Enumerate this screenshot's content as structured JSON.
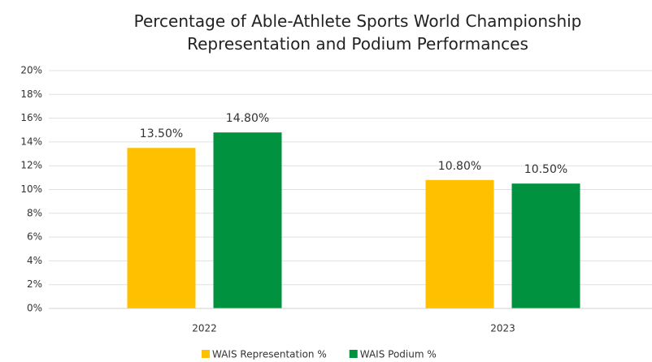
{
  "chart_data": {
    "type": "bar",
    "title": "Percentage of Able-Athlete Sports World Championship Representation and Podium Performances",
    "categories": [
      "2022",
      "2023"
    ],
    "series": [
      {
        "name": "WAIS Representation %",
        "color": "#ffc000",
        "values": [
          13.5,
          10.8
        ],
        "value_labels": [
          "13.50%",
          "10.80%"
        ]
      },
      {
        "name": "WAIS Podium %",
        "color": "#00923f",
        "values": [
          14.8,
          10.5
        ],
        "value_labels": [
          "14.80%",
          "10.50%"
        ]
      }
    ],
    "ylim": [
      0,
      20
    ],
    "yticks": [
      {
        "value": 0,
        "label": "0%"
      },
      {
        "value": 2,
        "label": "2%"
      },
      {
        "value": 4,
        "label": "4%"
      },
      {
        "value": 6,
        "label": "6%"
      },
      {
        "value": 8,
        "label": "8%"
      },
      {
        "value": 10,
        "label": "10%"
      },
      {
        "value": 12,
        "label": "12%"
      },
      {
        "value": 14,
        "label": "14%"
      },
      {
        "value": 16,
        "label": "16%"
      },
      {
        "value": 18,
        "label": "18%"
      },
      {
        "value": 20,
        "label": "20%"
      }
    ],
    "grid": true,
    "legend": "bottom"
  }
}
